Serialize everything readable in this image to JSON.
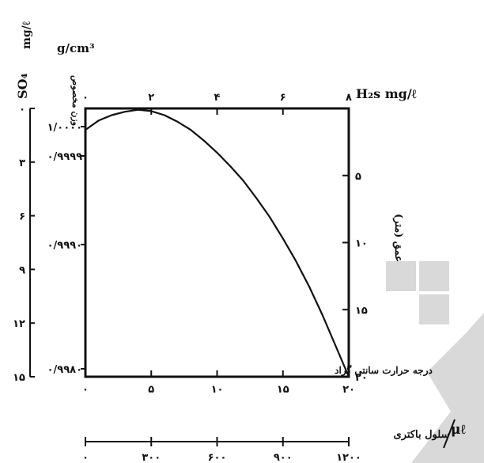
{
  "chart_data": {
    "type": "line",
    "x_bottom": {
      "label": "درجه حرارت سانتی گراد",
      "range": [
        0,
        20
      ],
      "ticks": [
        "۰",
        "۵",
        "۱۰",
        "۱۵",
        "۲۰"
      ]
    },
    "x_bottom2": {
      "label": "سلول باکتری",
      "unit": "μℓ",
      "range": [
        0,
        1200
      ],
      "ticks": [
        "۰",
        "۳۰۰",
        "۶۰۰",
        "۹۰۰",
        "۱۲۰۰"
      ]
    },
    "x_top": {
      "label": "H₂s mg/ℓ",
      "range": [
        0,
        8
      ],
      "ticks": [
        "۰",
        "۲",
        "۴",
        "۶",
        "۸"
      ]
    },
    "y_right": {
      "label": "عمق (متر)",
      "range": [
        0,
        20
      ],
      "ticks": [
        "۵",
        "۱۰",
        "۱۵",
        "۲۰"
      ]
    },
    "y_left_density": {
      "label": "وزن مخصوص",
      "unit": "g/cm³",
      "ticks": [
        "۱/۰۰۰۰",
        "۰/۹۹۹۹",
        "۰/۹۹۹۰",
        "۰/۹۹۸۰"
      ]
    },
    "y_left_so4": {
      "label": "SO₄",
      "unit": "mg/ℓ",
      "range": [
        0,
        15
      ],
      "ticks": [
        "۰",
        "۳",
        "۶",
        "۹",
        "۱۲",
        "۱۵"
      ]
    },
    "series": [
      {
        "x": [
          0,
          1,
          2,
          3,
          4,
          5,
          6,
          7,
          8,
          9,
          10,
          11,
          12,
          13,
          14,
          15,
          16,
          17,
          18,
          19,
          20
        ],
        "y": [
          1.6,
          0.9,
          0.5,
          0.25,
          0.1,
          0.2,
          0.5,
          1.0,
          1.6,
          2.4,
          3.3,
          4.3,
          5.4,
          6.7,
          8.1,
          9.7,
          11.4,
          13.3,
          15.4,
          17.7,
          20
        ]
      }
    ],
    "grid": false
  },
  "watermark": {
    "color": "#d9d9d9"
  }
}
